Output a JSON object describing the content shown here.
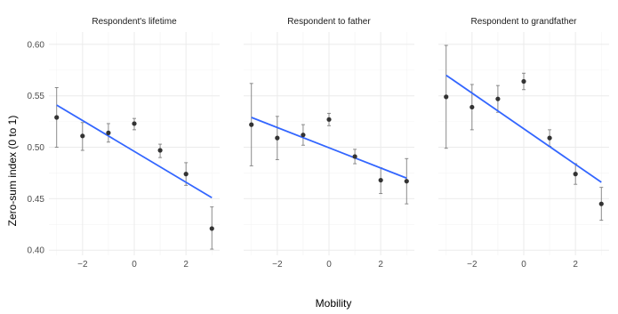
{
  "chart_data": {
    "type": "scatter",
    "ylabel": "Zero-sum index (0 to 1)",
    "xlabel": "Mobility",
    "xlim": [
      -3.3,
      3.3
    ],
    "ylim": [
      0.395,
      0.612
    ],
    "x_ticks": [
      -2,
      0,
      2
    ],
    "x_tick_labels": [
      "−2",
      "0",
      "2"
    ],
    "y_ticks": [
      0.4,
      0.45,
      0.5,
      0.55,
      0.6
    ],
    "y_tick_labels": [
      "0.40",
      "0.45",
      "0.50",
      "0.55",
      "0.60"
    ],
    "grid": true,
    "colors": {
      "points": "#333333",
      "errorbars": "#7f7f7f",
      "fit_line": "#3366FF",
      "grid": "#ebebeb"
    },
    "panels": [
      {
        "title": "Respondent's lifetime",
        "points": [
          {
            "x": -3,
            "y": 0.529,
            "lo": 0.5,
            "hi": 0.558
          },
          {
            "x": -2,
            "y": 0.511,
            "lo": 0.497,
            "hi": 0.524
          },
          {
            "x": -1,
            "y": 0.514,
            "lo": 0.505,
            "hi": 0.523
          },
          {
            "x": 0,
            "y": 0.523,
            "lo": 0.517,
            "hi": 0.528
          },
          {
            "x": 1,
            "y": 0.497,
            "lo": 0.49,
            "hi": 0.503
          },
          {
            "x": 2,
            "y": 0.474,
            "lo": 0.463,
            "hi": 0.485
          },
          {
            "x": 3,
            "y": 0.421,
            "lo": 0.401,
            "hi": 0.442
          }
        ],
        "fit": {
          "x": [
            -3,
            3
          ],
          "y": [
            0.541,
            0.451
          ]
        }
      },
      {
        "title": "Respondent to father",
        "points": [
          {
            "x": -3,
            "y": 0.522,
            "lo": 0.482,
            "hi": 0.562
          },
          {
            "x": -2,
            "y": 0.509,
            "lo": 0.488,
            "hi": 0.53
          },
          {
            "x": -1,
            "y": 0.512,
            "lo": 0.502,
            "hi": 0.522
          },
          {
            "x": 0,
            "y": 0.527,
            "lo": 0.521,
            "hi": 0.533
          },
          {
            "x": 1,
            "y": 0.491,
            "lo": 0.484,
            "hi": 0.498
          },
          {
            "x": 2,
            "y": 0.468,
            "lo": 0.455,
            "hi": 0.48
          },
          {
            "x": 3,
            "y": 0.467,
            "lo": 0.445,
            "hi": 0.489
          }
        ],
        "fit": {
          "x": [
            -3,
            3
          ],
          "y": [
            0.529,
            0.47
          ]
        }
      },
      {
        "title": "Respondent to grandfather",
        "points": [
          {
            "x": -3,
            "y": 0.549,
            "lo": 0.499,
            "hi": 0.599
          },
          {
            "x": -2,
            "y": 0.539,
            "lo": 0.517,
            "hi": 0.561
          },
          {
            "x": -1,
            "y": 0.547,
            "lo": 0.534,
            "hi": 0.56
          },
          {
            "x": 0,
            "y": 0.564,
            "lo": 0.556,
            "hi": 0.572
          },
          {
            "x": 1,
            "y": 0.509,
            "lo": 0.501,
            "hi": 0.517
          },
          {
            "x": 2,
            "y": 0.474,
            "lo": 0.464,
            "hi": 0.484
          },
          {
            "x": 3,
            "y": 0.445,
            "lo": 0.429,
            "hi": 0.461
          }
        ],
        "fit": {
          "x": [
            -3,
            3
          ],
          "y": [
            0.57,
            0.466
          ]
        }
      }
    ]
  }
}
